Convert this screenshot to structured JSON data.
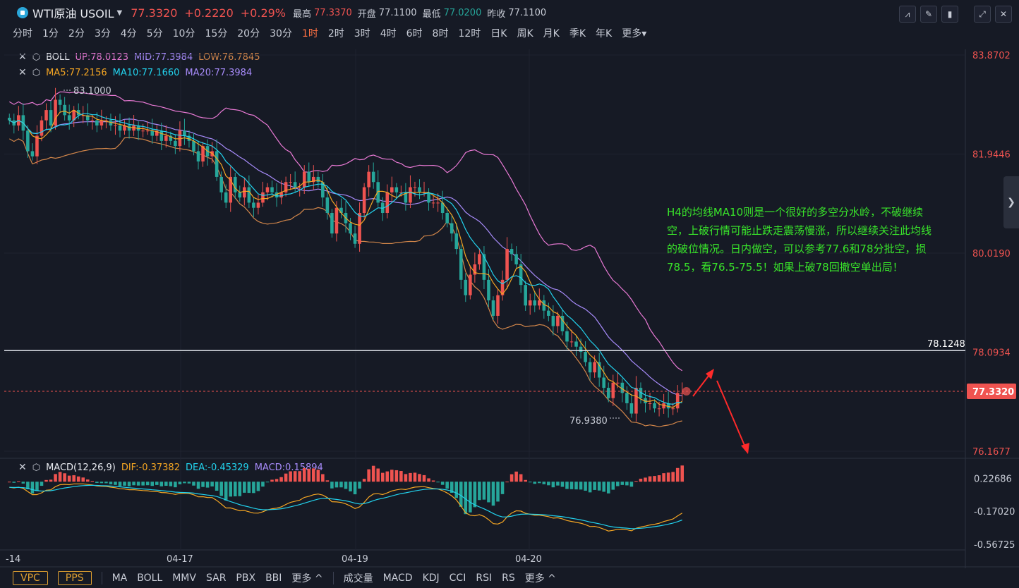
{
  "header": {
    "symbol": "WTI原油 USOIL",
    "price": "77.3320",
    "change": "+0.2220",
    "change_pct": "+0.29%",
    "high_label": "最高",
    "high": "77.3370",
    "open_label": "开盘",
    "open": "77.1100",
    "low_label": "最低",
    "low": "77.0200",
    "prev_label": "昨收",
    "prev": "77.1100"
  },
  "timeframes": [
    "分时",
    "1分",
    "2分",
    "3分",
    "4分",
    "5分",
    "10分",
    "15分",
    "20分",
    "30分",
    "1时",
    "2时",
    "3时",
    "4时",
    "6时",
    "8时",
    "12时",
    "日K",
    "周K",
    "月K",
    "季K",
    "年K",
    "更多"
  ],
  "active_timeframe": "1时",
  "indicators": {
    "boll": {
      "name": "BOLL",
      "up": "UP:78.0123",
      "mid": "MID:77.3984",
      "low": "LOW:76.7845"
    },
    "ma": {
      "ma5": "MA5:77.2156",
      "ma10": "MA10:77.1660",
      "ma20": "MA20:77.3984"
    },
    "macd": {
      "name": "MACD(12,26,9)",
      "dif": "DIF:-0.37382",
      "dea": "DEA:-0.45329",
      "macd": "MACD:0.15894"
    }
  },
  "note": "H4的均线MA10则是一个很好的多空分水岭，不破继续空，上破行情可能止跌走震荡慢涨，所以继续关注此均线的破位情况。日内做空，可以参考77.6和78分批空，损78.5，看76.5-75.5！如果上破78回撤空单出局！",
  "bottom_bar": {
    "pills": [
      "VPC",
      "PPS"
    ],
    "main_inds": [
      "MA",
      "BOLL",
      "MMV",
      "SAR",
      "PBX",
      "BBI",
      "更多 ^"
    ],
    "sub_inds": [
      "成交量",
      "MACD",
      "KDJ",
      "CCI",
      "RSI",
      "RS",
      "更多 ^"
    ]
  },
  "colors": {
    "up": "#ef5350",
    "down": "#26a69a",
    "boll_up": "#e879d4",
    "boll_mid": "#a78bfa",
    "boll_low": "#d2864a",
    "ma5": "#f5a623",
    "ma10": "#22d3ee",
    "ma20": "#a78bfa",
    "note": "#39e52a"
  },
  "chart_data": {
    "type": "candlestick",
    "y_axis_labels": [
      "83.8702",
      "81.9446",
      "80.0190",
      "78.0934",
      "76.1677"
    ],
    "ylim": [
      76.1677,
      83.8702
    ],
    "x_axis_labels": [
      "-14",
      "04-17",
      "04-19",
      "04-20"
    ],
    "horizontal_line": {
      "value": 78.1248,
      "label": "78.1248"
    },
    "current_price": {
      "value": 77.332,
      "label": "77.3320"
    },
    "annotations": {
      "high": "83.1000",
      "low": "76.9380"
    },
    "series": {
      "close": [
        82.6,
        82.5,
        82.7,
        82.4,
        82.0,
        81.9,
        82.3,
        82.6,
        82.8,
        82.5,
        83.0,
        82.9,
        82.7,
        82.6,
        82.8,
        82.7,
        82.7,
        82.6,
        82.6,
        82.5,
        82.6,
        82.6,
        82.5,
        82.5,
        82.4,
        82.5,
        82.4,
        82.5,
        82.4,
        82.4,
        82.4,
        82.3,
        82.4,
        82.2,
        82.3,
        82.2,
        82.1,
        82.4,
        82.3,
        82.2,
        82.0,
        81.8,
        82.1,
        81.9,
        82.0,
        81.5,
        81.2,
        81.0,
        81.5,
        81.2,
        81.1,
        81.3,
        81.0,
        80.9,
        81.0,
        81.2,
        81.3,
        81.2,
        81.1,
        81.2,
        81.4,
        81.4,
        81.3,
        81.3,
        81.6,
        81.4,
        81.5,
        81.4,
        81.1,
        80.8,
        80.4,
        80.9,
        80.8,
        80.6,
        80.4,
        80.2,
        80.8,
        81.3,
        81.6,
        81.4,
        81.0,
        80.8,
        81.2,
        81.3,
        81.2,
        81.2,
        81.0,
        81.3,
        81.3,
        81.2,
        81.2,
        81.0,
        81.0,
        81.0,
        80.8,
        80.6,
        80.4,
        80.1,
        79.5,
        79.2,
        79.6,
        79.8,
        80.0,
        79.5,
        79.1,
        78.8,
        79.2,
        79.5,
        80.1,
        80.0,
        79.8,
        79.4,
        79.0,
        79.1,
        79.0,
        79.1,
        78.9,
        78.8,
        78.6,
        78.8,
        78.5,
        78.3,
        78.3,
        78.2,
        78.1,
        77.9,
        77.7,
        77.9,
        77.6,
        77.4,
        77.2,
        77.5,
        77.5,
        77.3,
        77.1,
        76.9,
        77.4,
        77.2,
        77.1,
        77.1,
        77.0,
        77.0,
        77.1,
        77.0,
        77.0,
        77.3,
        77.3
      ],
      "macd_labels": [
        "0.22686",
        "-0.17020",
        "-0.56725"
      ]
    }
  }
}
